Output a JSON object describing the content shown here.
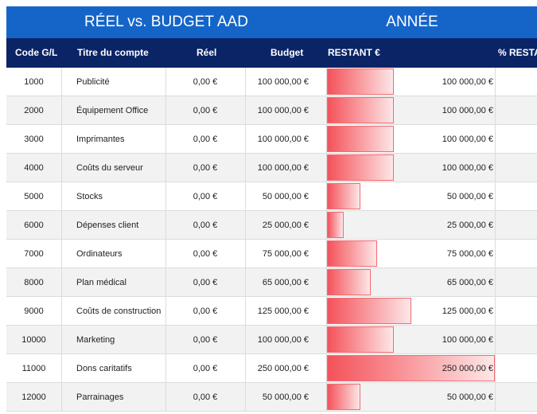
{
  "banner": {
    "title": "RÉEL vs. BUDGET AAD",
    "period": "ANNÉE"
  },
  "columns": {
    "code": "Code G/L",
    "title": "Titre du compte",
    "reel": "Réel",
    "budget": "Budget",
    "remaining": "RESTANT €",
    "pct_remaining": "% RESTA"
  },
  "rows": [
    {
      "code": "1000",
      "title": "Publicité",
      "reel": "0,00 €",
      "budget": "100 000,00 €",
      "remaining": "100 000,00 €",
      "remaining_value": 100000
    },
    {
      "code": "2000",
      "title": "Équipement Office",
      "reel": "0,00 €",
      "budget": "100 000,00 €",
      "remaining": "100 000,00 €",
      "remaining_value": 100000
    },
    {
      "code": "3000",
      "title": "Imprimantes",
      "reel": "0,00 €",
      "budget": "100 000,00 €",
      "remaining": "100 000,00 €",
      "remaining_value": 100000
    },
    {
      "code": "4000",
      "title": "Coûts du serveur",
      "reel": "0,00 €",
      "budget": "100 000,00 €",
      "remaining": "100 000,00 €",
      "remaining_value": 100000
    },
    {
      "code": "5000",
      "title": "Stocks",
      "reel": "0,00 €",
      "budget": "50 000,00 €",
      "remaining": "50 000,00 €",
      "remaining_value": 50000
    },
    {
      "code": "6000",
      "title": "Dépenses client",
      "reel": "0,00 €",
      "budget": "25 000,00 €",
      "remaining": "25 000,00 €",
      "remaining_value": 25000
    },
    {
      "code": "7000",
      "title": "Ordinateurs",
      "reel": "0,00 €",
      "budget": "75 000,00 €",
      "remaining": "75 000,00 €",
      "remaining_value": 75000
    },
    {
      "code": "8000",
      "title": "Plan médical",
      "reel": "0,00 €",
      "budget": "65 000,00 €",
      "remaining": "65 000,00 €",
      "remaining_value": 65000
    },
    {
      "code": "9000",
      "title": "Coûts de construction",
      "reel": "0,00 €",
      "budget": "125 000,00 €",
      "remaining": "125 000,00 €",
      "remaining_value": 125000
    },
    {
      "code": "10000",
      "title": "Marketing",
      "reel": "0,00 €",
      "budget": "100 000,00 €",
      "remaining": "100 000,00 €",
      "remaining_value": 100000
    },
    {
      "code": "11000",
      "title": "Dons caritatifs",
      "reel": "0,00 €",
      "budget": "250 000,00 €",
      "remaining": "250 000,00 €",
      "remaining_value": 250000
    },
    {
      "code": "12000",
      "title": "Parrainages",
      "reel": "0,00 €",
      "budget": "50 000,00 €",
      "remaining": "50 000,00 €",
      "remaining_value": 50000
    }
  ],
  "colors": {
    "banner": "#1565c8",
    "header": "#0b2466",
    "bar": "#f4525a"
  }
}
